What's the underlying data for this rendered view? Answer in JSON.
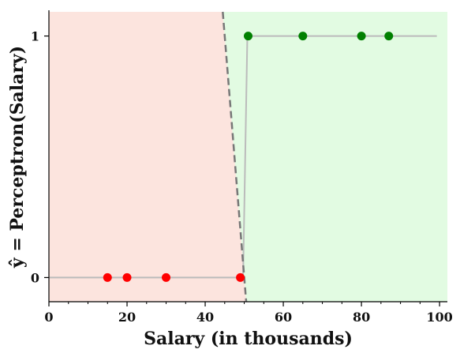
{
  "chart_data": {
    "type": "scatter",
    "title": "",
    "xlabel": "Salary (in thousands)",
    "ylabel": "ŷ = Perceptron(Salary)",
    "xlim": [
      0,
      102
    ],
    "ylim": [
      -0.1,
      1.1
    ],
    "x_ticks": [
      0,
      20,
      40,
      60,
      80,
      100
    ],
    "x_tick_labels": [
      "0",
      "20",
      "40",
      "60",
      "80",
      "100"
    ],
    "y_ticks": [
      0,
      1
    ],
    "y_tick_labels": [
      "0",
      "1"
    ],
    "x_minor_ticks_step": 5,
    "grid": false,
    "series": [
      {
        "class": 0,
        "color": "#ff0000",
        "x": [
          15,
          20,
          30,
          49
        ],
        "y": [
          0,
          0,
          0,
          0
        ]
      },
      {
        "class": 1,
        "color": "#008000",
        "x": [
          51,
          65,
          80,
          87
        ],
        "y": [
          1,
          1,
          1,
          1
        ]
      }
    ],
    "step_function": {
      "color": "#bbbbbb",
      "x": [
        0,
        49.7,
        50.8,
        99.3
      ],
      "y": [
        0,
        0,
        1,
        1
      ]
    },
    "decision_boundary": {
      "style": "dashed",
      "color": "#777777",
      "x": [
        44.5,
        50.5
      ],
      "y": [
        1.1,
        -0.1
      ]
    },
    "regions": [
      {
        "class": 0,
        "color": "#fce4de"
      },
      {
        "class": 1,
        "color": "#e2fbe2"
      }
    ]
  }
}
